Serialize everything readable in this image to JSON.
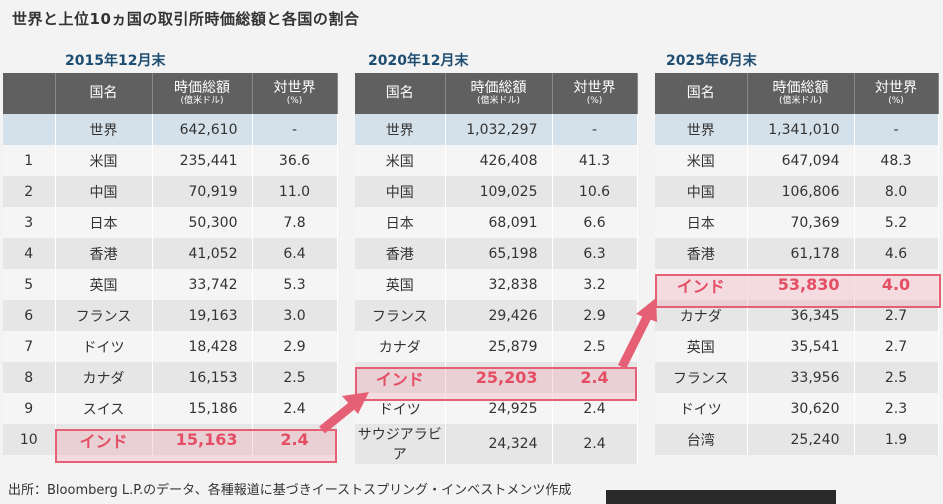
{
  "title": "世界と上位10ヵ国の取引所時価総額と各国の割合",
  "headers": {
    "rank": "",
    "country": "国名",
    "cap": "時価総額",
    "cap_unit": "(億米ドル)",
    "share": "対世界",
    "share_unit": "(%)"
  },
  "tables": [
    {
      "period": "2015年12月末",
      "world": {
        "name": "世界",
        "cap": "642,610",
        "share": "-"
      },
      "rows": [
        {
          "rank": "1",
          "name": "米国",
          "cap": "235,441",
          "share": "36.6"
        },
        {
          "rank": "2",
          "name": "中国",
          "cap": "70,919",
          "share": "11.0"
        },
        {
          "rank": "3",
          "name": "日本",
          "cap": "50,300",
          "share": "7.8"
        },
        {
          "rank": "4",
          "name": "香港",
          "cap": "41,052",
          "share": "6.4"
        },
        {
          "rank": "5",
          "name": "英国",
          "cap": "33,742",
          "share": "5.3"
        },
        {
          "rank": "6",
          "name": "フランス",
          "cap": "19,163",
          "share": "3.0"
        },
        {
          "rank": "7",
          "name": "ドイツ",
          "cap": "18,428",
          "share": "2.9"
        },
        {
          "rank": "8",
          "name": "カナダ",
          "cap": "16,153",
          "share": "2.5"
        },
        {
          "rank": "9",
          "name": "スイス",
          "cap": "15,186",
          "share": "2.4"
        },
        {
          "rank": "10",
          "name": "インド",
          "cap": "15,163",
          "share": "2.4"
        }
      ]
    },
    {
      "period": "2020年12月末",
      "world": {
        "name": "世界",
        "cap": "1,032,297",
        "share": "-"
      },
      "rows": [
        {
          "name": "米国",
          "cap": "426,408",
          "share": "41.3"
        },
        {
          "name": "中国",
          "cap": "109,025",
          "share": "10.6"
        },
        {
          "name": "日本",
          "cap": "68,091",
          "share": "6.6"
        },
        {
          "name": "香港",
          "cap": "65,198",
          "share": "6.3"
        },
        {
          "name": "英国",
          "cap": "32,838",
          "share": "3.2"
        },
        {
          "name": "フランス",
          "cap": "29,426",
          "share": "2.9"
        },
        {
          "name": "カナダ",
          "cap": "25,879",
          "share": "2.5"
        },
        {
          "name": "インド",
          "cap": "25,203",
          "share": "2.4"
        },
        {
          "name": "ドイツ",
          "cap": "24,925",
          "share": "2.4"
        },
        {
          "name": "サウジアラビア",
          "cap": "24,324",
          "share": "2.4"
        }
      ]
    },
    {
      "period": "2025年6月末",
      "world": {
        "name": "世界",
        "cap": "1,341,010",
        "share": "-"
      },
      "rows": [
        {
          "name": "米国",
          "cap": "647,094",
          "share": "48.3"
        },
        {
          "name": "中国",
          "cap": "106,806",
          "share": "8.0"
        },
        {
          "name": "日本",
          "cap": "70,369",
          "share": "5.2"
        },
        {
          "name": "香港",
          "cap": "61,178",
          "share": "4.6"
        },
        {
          "name": "インド",
          "cap": "53,830",
          "share": "4.0"
        },
        {
          "name": "カナダ",
          "cap": "36,345",
          "share": "2.7"
        },
        {
          "name": "英国",
          "cap": "35,541",
          "share": "2.7"
        },
        {
          "name": "フランス",
          "cap": "33,956",
          "share": "2.5"
        },
        {
          "name": "ドイツ",
          "cap": "30,620",
          "share": "2.3"
        },
        {
          "name": "台湾",
          "cap": "25,240",
          "share": "1.9"
        }
      ]
    }
  ],
  "footer": "出所：Bloomberg L.P.のデータ、各種報道に基づきイーストスプリング・インベストメンツ作成",
  "colors": {
    "highlight": "#e0334d",
    "header_bg": "#606060",
    "world_bg": "#d5e1ea",
    "period_text": "#1e4d72"
  }
}
